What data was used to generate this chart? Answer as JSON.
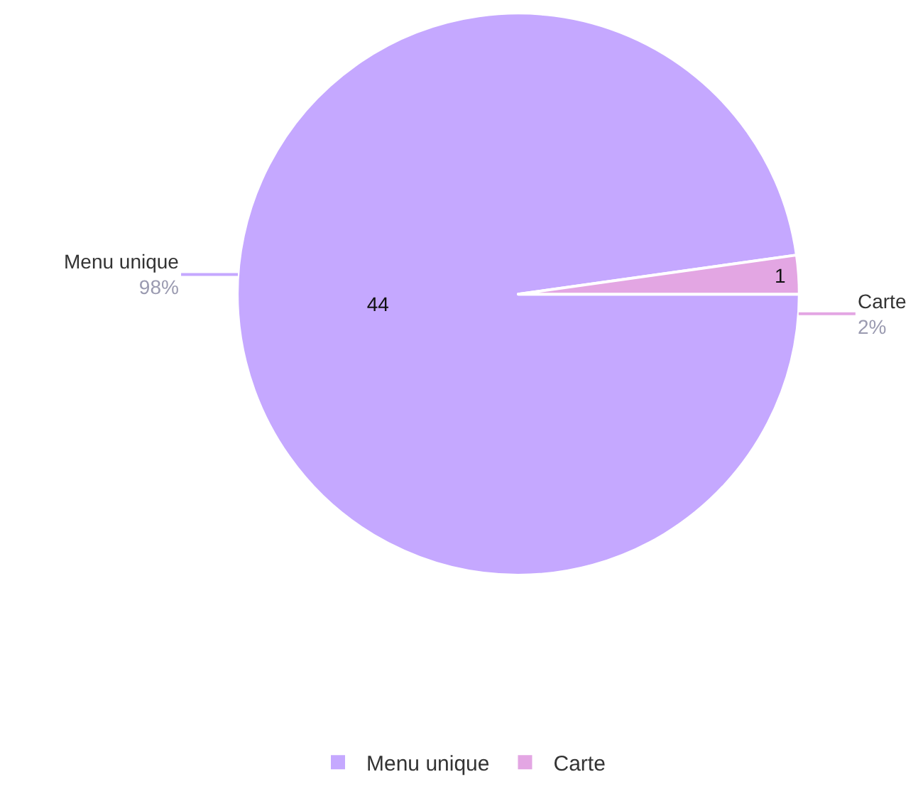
{
  "chart_data": {
    "type": "pie",
    "categories": [
      "Menu unique",
      "Carte"
    ],
    "values": [
      44,
      1
    ],
    "colors": [
      "#c5a8ff",
      "#e3a6e3"
    ],
    "value_labels": [
      "44",
      "1"
    ],
    "annotations": [
      {
        "text": "98%",
        "x": "Menu unique"
      },
      {
        "text": "2%",
        "x": "Carte"
      }
    ],
    "legend": "bottom"
  }
}
